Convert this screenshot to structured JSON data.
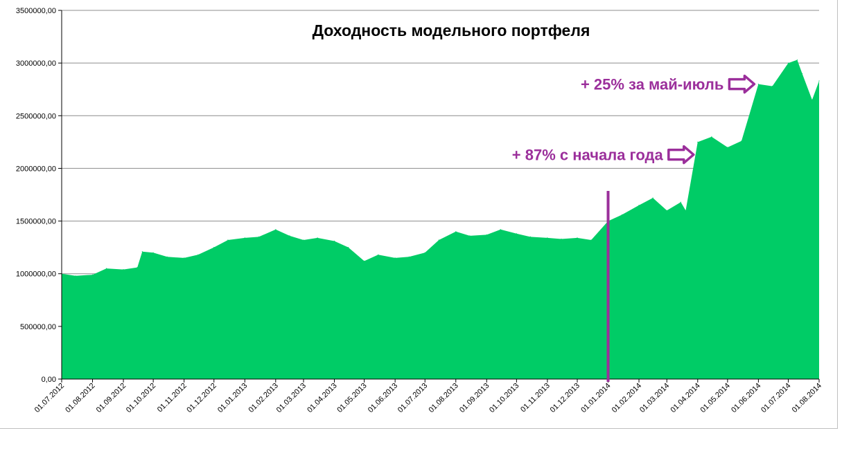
{
  "chart_data": {
    "type": "area",
    "title": "Доходность модельного портфеля",
    "xlabel": "",
    "ylabel": "",
    "ylim": [
      0,
      3500000
    ],
    "y_ticks": [
      0,
      500000,
      1000000,
      1500000,
      2000000,
      2500000,
      3000000,
      3500000
    ],
    "y_tick_labels": [
      "0,00",
      "500000,00",
      "1000000,00",
      "1500000,00",
      "2000000,00",
      "2500000,00",
      "3000000,00",
      "3500000,00"
    ],
    "x_tick_labels": [
      "01.07.2012",
      "01.08.2012",
      "01.09.2012",
      "01.10.2012",
      "01.11.2012",
      "01.12.2012",
      "01.01.2013",
      "01.02.2013",
      "01.03.2013",
      "01.04.2013",
      "01.05.2013",
      "01.06.2013",
      "01.07.2013",
      "01.08.2013",
      "01.09.2013",
      "01.10.2013",
      "01.11.2013",
      "01.12.2013",
      "01.01.2014",
      "01.02.2014",
      "01.03.2014",
      "01.04.2014",
      "01.05.2014",
      "01.06.2014",
      "01.07.2014",
      "01.08.2014"
    ],
    "grid": true,
    "legend": "none",
    "series_color": "#00cc66",
    "series": [
      {
        "x": [
          "01.07.2012",
          "15.07.2012",
          "01.08.2012",
          "15.08.2012",
          "01.09.2012",
          "15.09.2012",
          "20.09.2012",
          "01.10.2012",
          "15.10.2012",
          "01.11.2012",
          "15.11.2012",
          "01.12.2012",
          "15.12.2012",
          "01.01.2013",
          "15.01.2013",
          "01.02.2013",
          "15.02.2013",
          "01.03.2013",
          "15.03.2013",
          "01.04.2013",
          "15.04.2013",
          "01.05.2013",
          "15.05.2013",
          "01.06.2013",
          "15.06.2013",
          "01.07.2013",
          "15.07.2013",
          "01.08.2013",
          "15.08.2013",
          "01.09.2013",
          "15.09.2013",
          "01.10.2013",
          "15.10.2013",
          "01.11.2013",
          "15.11.2013",
          "01.12.2013",
          "15.12.2013",
          "01.01.2014",
          "15.01.2014",
          "01.02.2014",
          "15.02.2014",
          "01.03.2014",
          "15.03.2014",
          "20.03.2014",
          "01.04.2014",
          "15.04.2014",
          "01.05.2014",
          "15.05.2014",
          "01.06.2014",
          "15.06.2014",
          "01.07.2014",
          "10.07.2014",
          "15.07.2014",
          "25.07.2014",
          "01.08.2014"
        ],
        "values": [
          1000000,
          980000,
          990000,
          1050000,
          1040000,
          1060000,
          1210000,
          1200000,
          1160000,
          1150000,
          1180000,
          1250000,
          1320000,
          1340000,
          1350000,
          1420000,
          1360000,
          1320000,
          1340000,
          1310000,
          1250000,
          1120000,
          1180000,
          1150000,
          1160000,
          1200000,
          1320000,
          1400000,
          1360000,
          1370000,
          1420000,
          1380000,
          1350000,
          1340000,
          1330000,
          1340000,
          1320000,
          1500000,
          1560000,
          1650000,
          1720000,
          1600000,
          1680000,
          1600000,
          2250000,
          2300000,
          2200000,
          2260000,
          2800000,
          2780000,
          3000000,
          3030000,
          2900000,
          2650000,
          2830000
        ]
      }
    ],
    "markers": [
      {
        "type": "vertical_line",
        "x": "01.01.2014",
        "color": "#9b2f9b"
      }
    ],
    "annotations": [
      {
        "text": "+ 25% за май-июль",
        "target_x": "01.06.2014",
        "target_y": 2800000,
        "color": "#9b2f9b"
      },
      {
        "text": "+ 87% с начала года",
        "target_x": "01.04.2014",
        "target_y": 2130000,
        "color": "#9b2f9b"
      }
    ]
  }
}
